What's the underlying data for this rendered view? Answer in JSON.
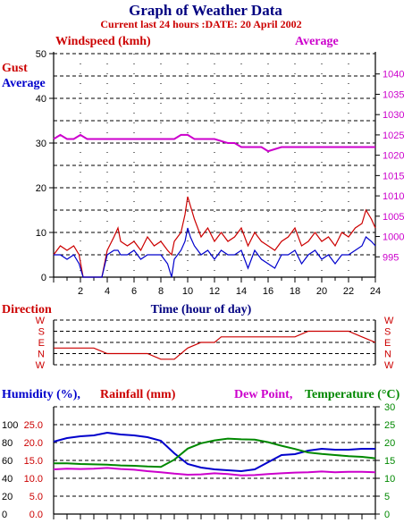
{
  "colors": {
    "red": "#cc0000",
    "blue": "#0000cc",
    "magenta": "#cc00cc",
    "green": "#008800",
    "dark": "#000080"
  },
  "header": {
    "title": "Graph of Weather Data",
    "subtitle": "Current last 24 hours :DATE: 20 April 2002"
  },
  "wind": {
    "left_label": "Windspeed (kmh)",
    "right_label": "Average",
    "gust_label": "Gust",
    "avg_label": "Average",
    "xlabel": "Time (hour of day)"
  },
  "direction": {
    "label": "Direction"
  },
  "lower": {
    "humidity_label": "Humidity (%),",
    "rainfall_label": "Rainfall (mm)",
    "dewpoint_label": "Dew Point,",
    "temperature_label": "Temperature (°C)"
  },
  "chart_data": [
    {
      "type": "line",
      "title": "Windspeed (kmh)",
      "xlabel": "Time (hour of day)",
      "xlim": [
        0,
        24
      ],
      "x_ticks": [
        2,
        4,
        6,
        8,
        10,
        12,
        14,
        16,
        18,
        20,
        22,
        24
      ],
      "ylim": [
        0,
        50
      ],
      "y_ticks": [
        0,
        10,
        20,
        30,
        40,
        50
      ],
      "y2lim": [
        990,
        1045
      ],
      "y2_ticks": [
        995,
        1000,
        1005,
        1010,
        1015,
        1020,
        1025,
        1030,
        1035,
        1040
      ],
      "series": [
        {
          "name": "Gust",
          "color": "#cc0000",
          "x": [
            0,
            0.5,
            1,
            1.5,
            1.9,
            2.2,
            2.5,
            3,
            3.6,
            4,
            4.5,
            4.8,
            5,
            5.5,
            6,
            6.5,
            7,
            7.5,
            8,
            8.5,
            8.8,
            9,
            9.5,
            9.8,
            10,
            10.2,
            10.5,
            11,
            11.5,
            12,
            12.5,
            13,
            13.5,
            14,
            14.5,
            15,
            15.5,
            16,
            16.5,
            17,
            17.5,
            18,
            18.5,
            19,
            19.5,
            20,
            20.5,
            21,
            21.5,
            22,
            22.5,
            23,
            23.3,
            23.7,
            24
          ],
          "y": [
            5,
            7,
            6,
            7,
            5,
            0,
            0,
            0,
            0,
            6,
            9,
            11,
            8,
            7,
            8,
            6,
            9,
            7,
            8,
            6,
            5,
            8,
            10,
            14,
            18,
            16,
            13,
            9,
            11,
            8,
            10,
            8,
            9,
            11,
            7,
            10,
            8,
            7,
            6,
            8,
            9,
            11,
            7,
            8,
            10,
            8,
            9,
            7,
            10,
            9,
            11,
            12,
            15,
            13,
            11
          ]
        },
        {
          "name": "Average",
          "color": "#0000cc",
          "x": [
            0,
            0.5,
            1,
            1.5,
            1.9,
            2.2,
            2.5,
            3,
            3.6,
            4,
            4.5,
            4.8,
            5,
            5.5,
            6,
            6.5,
            7,
            7.5,
            8,
            8.5,
            8.8,
            9,
            9.5,
            9.8,
            10,
            10.2,
            10.5,
            11,
            11.5,
            12,
            12.5,
            13,
            13.5,
            14,
            14.5,
            15,
            15.5,
            16,
            16.5,
            17,
            17.5,
            18,
            18.5,
            19,
            19.5,
            20,
            20.5,
            21,
            21.5,
            22,
            22.5,
            23,
            23.3,
            23.7,
            24
          ],
          "y": [
            5,
            5,
            4,
            5,
            3,
            0,
            0,
            0,
            0,
            5,
            6,
            6,
            5,
            5,
            6,
            4,
            5,
            5,
            5,
            3,
            0,
            4,
            6,
            8,
            11,
            9,
            7,
            5,
            6,
            4,
            6,
            5,
            5,
            6,
            2,
            6,
            4,
            3,
            2,
            5,
            5,
            6,
            3,
            5,
            6,
            4,
            5,
            3,
            5,
            5,
            6,
            7,
            9,
            8,
            7
          ]
        },
        {
          "name": "Average (pressure)",
          "axis": "right",
          "color": "#cc00cc",
          "x": [
            0,
            0.5,
            1,
            1.5,
            2,
            2.5,
            3,
            4,
            5,
            6,
            7,
            8,
            9,
            9.5,
            10,
            10.5,
            11,
            12,
            13,
            13.5,
            14,
            14.5,
            15,
            15.5,
            16,
            17,
            18,
            19,
            19.5,
            20,
            21,
            22,
            23,
            24
          ],
          "y": [
            1024,
            1025,
            1024,
            1024,
            1025,
            1024,
            1024,
            1024,
            1024,
            1024,
            1024,
            1024,
            1024,
            1025,
            1025,
            1024,
            1024,
            1024,
            1023,
            1023,
            1022,
            1022,
            1022,
            1022,
            1021,
            1022,
            1022,
            1022,
            1022,
            1022,
            1022,
            1022,
            1022,
            1022
          ]
        }
      ]
    },
    {
      "type": "line",
      "title": "Direction",
      "xlim": [
        0,
        24
      ],
      "y_ticks": [
        "W",
        "S",
        "E",
        "N",
        "W"
      ],
      "series": [
        {
          "name": "Direction",
          "color": "#cc0000",
          "x": [
            0,
            1,
            2,
            3,
            4,
            5,
            6,
            7,
            8,
            9,
            10,
            11,
            12,
            12.5,
            13,
            14,
            15,
            16,
            17,
            18,
            19,
            20,
            21,
            22,
            23,
            24
          ],
          "y": [
            "SE",
            "SE",
            "SE",
            "SE",
            "S",
            "S",
            "S",
            "S",
            "SW",
            "SW",
            "SE",
            "E",
            "E",
            "NE",
            "NE",
            "NE",
            "NE",
            "NE",
            "NE",
            "NE",
            "N",
            "N",
            "N",
            "N",
            "NE",
            "E"
          ]
        }
      ]
    },
    {
      "type": "line",
      "title": "Humidity, Rainfall, Dew Point, Temperature",
      "xlim": [
        0,
        24
      ],
      "humidity_ticks": [
        0,
        20,
        40,
        60,
        80,
        100
      ],
      "rainfall_ticks": [
        "0.0",
        "5.0",
        "10.0",
        "15.0",
        "20.0",
        "25.0"
      ],
      "right_ticks": [
        0,
        5,
        10,
        15,
        20,
        25,
        30
      ],
      "series": [
        {
          "name": "Humidity",
          "color": "#0000cc",
          "x": [
            0,
            1,
            2,
            3,
            4,
            5,
            6,
            7,
            8,
            9,
            10,
            11,
            12,
            13,
            14,
            15,
            16,
            17,
            18,
            19,
            20,
            21,
            22,
            23,
            24
          ],
          "y": [
            81,
            85,
            87,
            88,
            91,
            89,
            88,
            86,
            82,
            68,
            56,
            52,
            50,
            49,
            48,
            50,
            58,
            66,
            67,
            71,
            73,
            72,
            72,
            73,
            73
          ]
        },
        {
          "name": "Dew Point",
          "color": "#cc00cc",
          "x": [
            0,
            1,
            2,
            3,
            4,
            5,
            6,
            7,
            8,
            9,
            10,
            11,
            12,
            13,
            14,
            15,
            16,
            17,
            18,
            19,
            20,
            21,
            22,
            23,
            24
          ],
          "y": [
            12.5,
            12.7,
            12.6,
            12.7,
            12.9,
            12.6,
            12.4,
            12.0,
            11.7,
            11.3,
            11.0,
            11.1,
            11.4,
            11.2,
            10.8,
            10.9,
            11.2,
            11.4,
            11.6,
            11.7,
            11.9,
            11.7,
            11.8,
            11.8,
            11.7
          ]
        },
        {
          "name": "Temperature",
          "color": "#008800",
          "x": [
            0,
            1,
            2,
            3,
            4,
            5,
            6,
            7,
            8,
            9,
            10,
            11,
            12,
            13,
            14,
            15,
            16,
            17,
            18,
            19,
            20,
            21,
            22,
            23,
            24
          ],
          "y": [
            14.2,
            14.2,
            14.0,
            13.9,
            13.8,
            13.6,
            13.5,
            13.3,
            13.2,
            15.2,
            18.3,
            19.8,
            20.6,
            21.1,
            20.9,
            20.8,
            20.1,
            19.1,
            18.2,
            17.2,
            16.8,
            16.5,
            16.2,
            16.0,
            15.6
          ]
        }
      ]
    }
  ]
}
